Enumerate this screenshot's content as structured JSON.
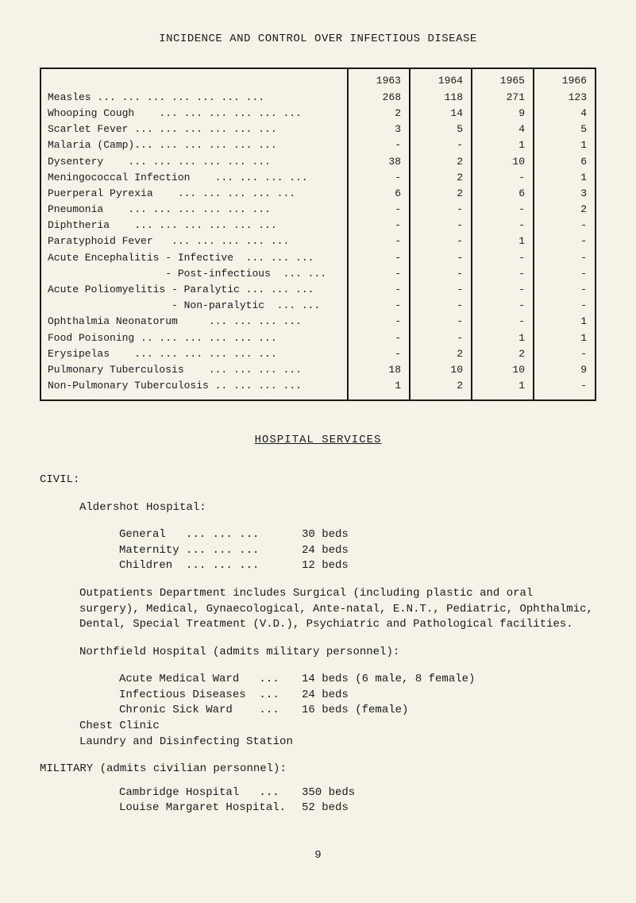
{
  "title": "INCIDENCE AND CONTROL OVER INFECTIOUS DISEASE",
  "table": {
    "years": [
      "1963",
      "1964",
      "1965",
      "1966"
    ],
    "rows": [
      {
        "label": "Measles ... ... ... ... ... ... ...",
        "vals": [
          "268",
          "118",
          "271",
          "123"
        ]
      },
      {
        "label": "Whooping Cough    ... ... ... ... ... ...",
        "vals": [
          "2",
          "14",
          "9",
          "4"
        ]
      },
      {
        "label": "Scarlet Fever ... ... ... ... ... ...",
        "vals": [
          "3",
          "5",
          "4",
          "5"
        ]
      },
      {
        "label": "Malaria (Camp)... ... ... ... ... ...",
        "vals": [
          "-",
          "-",
          "1",
          "1"
        ]
      },
      {
        "label": "Dysentery    ... ... ... ... ... ...",
        "vals": [
          "38",
          "2",
          "10",
          "6"
        ]
      },
      {
        "label": "Meningococcal Infection    ... ... ... ...",
        "vals": [
          "-",
          "2",
          "-",
          "1"
        ]
      },
      {
        "label": "Puerperal Pyrexia    ... ... ... ... ...",
        "vals": [
          "6",
          "2",
          "6",
          "3"
        ]
      },
      {
        "label": "Pneumonia    ... ... ... ... ... ...",
        "vals": [
          "-",
          "-",
          "-",
          "2"
        ]
      },
      {
        "label": "Diphtheria    ... ... ... ... ... ...",
        "vals": [
          "-",
          "-",
          "-",
          "-"
        ]
      },
      {
        "label": "Paratyphoid Fever   ... ... ... ... ...",
        "vals": [
          "-",
          "-",
          "1",
          "-"
        ]
      },
      {
        "label": "Acute Encephalitis - Infective  ... ... ...",
        "vals": [
          "-",
          "-",
          "-",
          "-"
        ]
      },
      {
        "label": "                   - Post-infectious  ... ...",
        "vals": [
          "-",
          "-",
          "-",
          "-"
        ]
      },
      {
        "label": "Acute Poliomyelitis - Paralytic ... ... ...",
        "vals": [
          "-",
          "-",
          "-",
          "-"
        ]
      },
      {
        "label": "                    - Non-paralytic  ... ...",
        "vals": [
          "-",
          "-",
          "-",
          "-"
        ]
      },
      {
        "label": "Ophthalmia Neonatorum     ... ... ... ...",
        "vals": [
          "-",
          "-",
          "-",
          "1"
        ]
      },
      {
        "label": "Food Poisoning .. ... ... ... ... ...",
        "vals": [
          "-",
          "-",
          "1",
          "1"
        ]
      },
      {
        "label": "Erysipelas    ... ... ... ... ... ...",
        "vals": [
          "-",
          "2",
          "2",
          "-"
        ]
      },
      {
        "label": "Pulmonary Tuberculosis    ... ... ... ...",
        "vals": [
          "18",
          "10",
          "10",
          "9"
        ]
      },
      {
        "label": "Non-Pulmonary Tuberculosis .. ... ... ...",
        "vals": [
          "1",
          "2",
          "1",
          "-"
        ]
      }
    ]
  },
  "hospital_services": {
    "header": "HOSPITAL  SERVICES"
  },
  "civil": {
    "header": "CIVIL:",
    "aldershot": {
      "title": "Aldershot Hospital:",
      "items": [
        {
          "label": "General   ... ... ...",
          "value": "30 beds"
        },
        {
          "label": "Maternity ... ... ...",
          "value": "24 beds"
        },
        {
          "label": "Children  ... ... ...",
          "value": "12 beds"
        }
      ]
    },
    "outpatients_para": "Outpatients Department includes Surgical (including plastic and oral surgery), Medical, Gynaecological, Ante-natal, E.N.T., Pediatric, Ophthalmic, Dental, Special Treatment (V.D.), Psychiatric and Pathological facilities.",
    "northfield": {
      "title": "Northfield Hospital (admits military personnel):",
      "items": [
        {
          "label": "Acute Medical Ward   ...",
          "value": "14 beds (6 male, 8 female)"
        },
        {
          "label": "Infectious Diseases  ...",
          "value": "24 beds"
        },
        {
          "label": "Chronic Sick Ward    ...",
          "value": "16 beds (female)"
        }
      ],
      "extra1": "Chest Clinic",
      "extra2": "Laundry and Disinfecting Station"
    }
  },
  "military": {
    "header": "MILITARY (admits civilian personnel):",
    "items": [
      {
        "label": "Cambridge Hospital   ...",
        "value": "350 beds"
      },
      {
        "label": "Louise Margaret Hospital.",
        "value": "52 beds"
      }
    ]
  },
  "page_number": "9"
}
